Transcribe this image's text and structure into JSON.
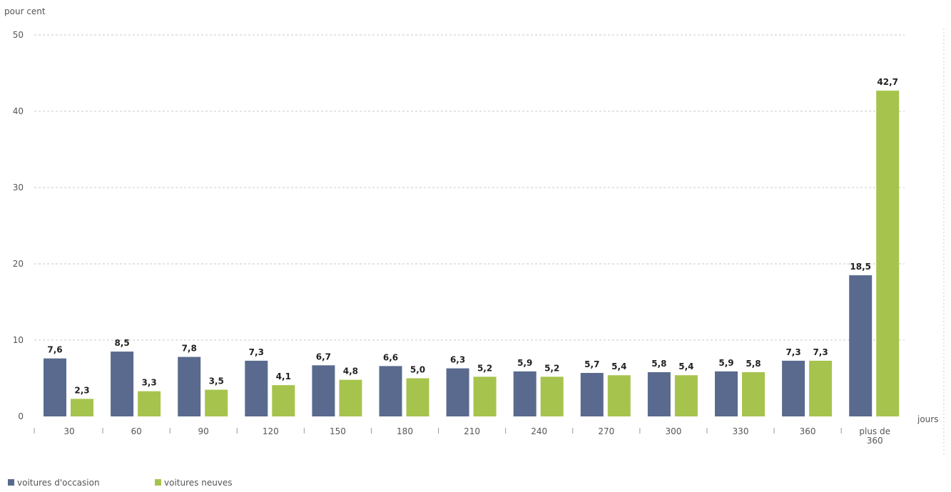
{
  "chart_data": {
    "type": "bar",
    "ylabel": "pour cent",
    "xunit": "jours",
    "categories": [
      "30",
      "60",
      "90",
      "120",
      "150",
      "180",
      "210",
      "240",
      "270",
      "300",
      "330",
      "360",
      [
        "plus de",
        "360"
      ]
    ],
    "series": [
      {
        "name": "voitures d'occasion",
        "color": "#5a6a8e",
        "values": [
          7.6,
          8.5,
          7.8,
          7.3,
          6.7,
          6.6,
          6.3,
          5.9,
          5.7,
          5.8,
          5.9,
          7.3,
          18.5
        ],
        "labels": [
          "7,6",
          "8,5",
          "7,8",
          "7,3",
          "6,7",
          "6,6",
          "6,3",
          "5,9",
          "5,7",
          "5,8",
          "5,9",
          "7,3",
          "18,5"
        ]
      },
      {
        "name": "voitures neuves",
        "color": "#a6c44d",
        "values": [
          2.3,
          3.3,
          3.5,
          4.1,
          4.8,
          5.0,
          5.2,
          5.2,
          5.4,
          5.4,
          5.8,
          7.3,
          42.7
        ],
        "labels": [
          "2,3",
          "3,3",
          "3,5",
          "4,1",
          "4,8",
          "5,0",
          "5,2",
          "5,2",
          "5,4",
          "5,4",
          "5,8",
          "7,3",
          "42,7"
        ]
      }
    ],
    "yticks": [
      0,
      10,
      20,
      30,
      40,
      50
    ],
    "ylim": [
      0,
      50
    ],
    "grid": true,
    "legend": "bottom-left"
  }
}
